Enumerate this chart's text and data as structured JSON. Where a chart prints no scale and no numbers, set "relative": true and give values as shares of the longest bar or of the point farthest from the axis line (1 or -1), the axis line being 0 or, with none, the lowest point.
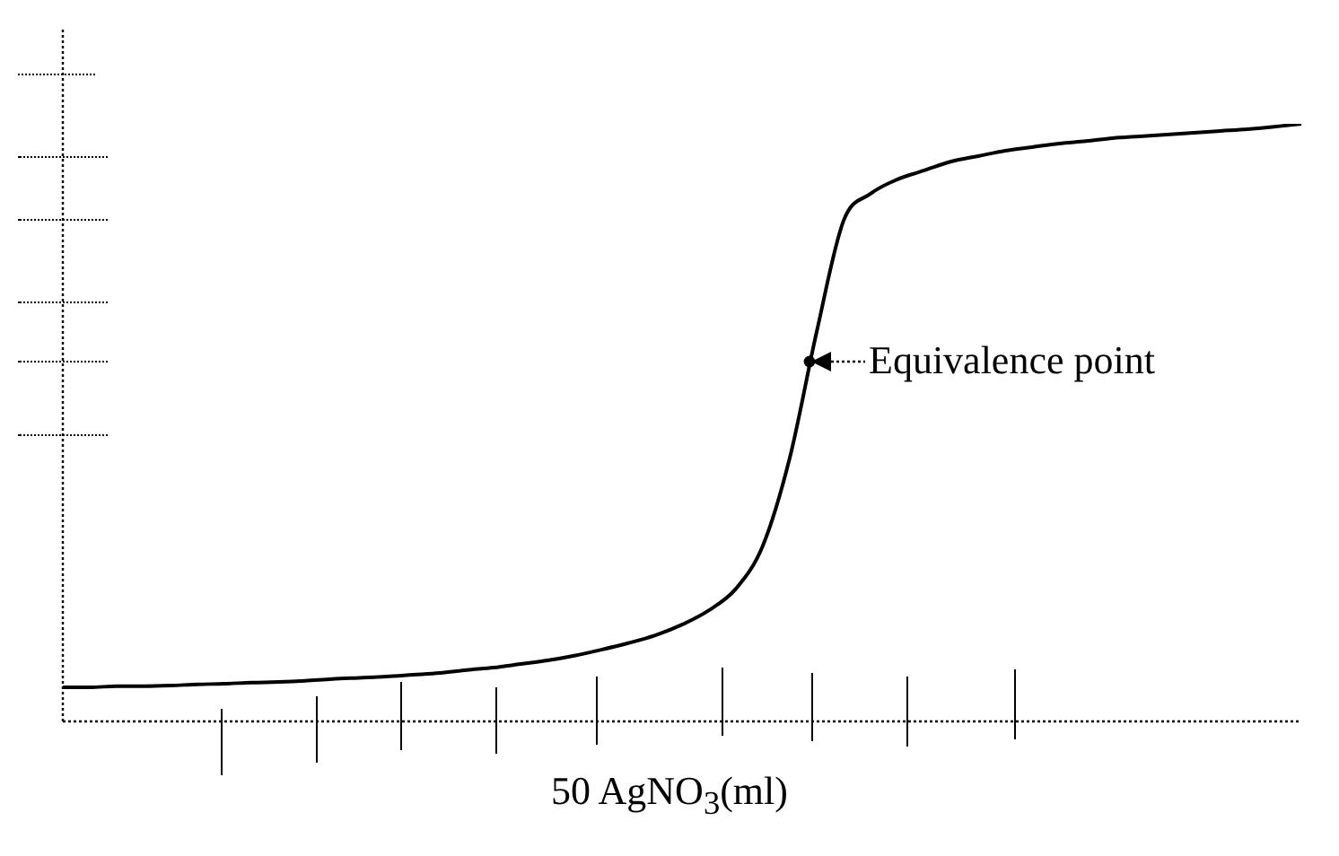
{
  "chart_data": {
    "type": "line",
    "relative": true,
    "xlabel": "50 AgNO$_{3}$(ml)",
    "marker": "none",
    "legend": false,
    "categories": [
      null,
      null,
      null,
      null,
      null,
      null,
      null,
      null,
      null,
      null,
      null,
      null,
      null,
      null,
      null,
      null,
      null,
      null,
      null,
      null,
      null,
      null,
      null,
      null,
      null,
      null,
      null,
      null,
      null,
      null,
      null,
      null,
      null,
      null,
      null,
      null,
      null,
      null,
      null,
      null,
      null,
      null,
      null,
      null,
      null,
      null,
      null
    ],
    "series": [
      {
        "color": "#000000",
        "values": [
          0.057,
          0.057,
          0.059,
          0.059,
          0.06,
          0.062,
          0.063,
          0.065,
          0.066,
          0.068,
          0.071,
          0.073,
          0.075,
          0.078,
          0.081,
          0.086,
          0.09,
          0.096,
          0.102,
          0.11,
          0.12,
          0.131,
          0.144,
          0.162,
          0.186,
          0.222,
          0.294,
          0.441,
          0.652,
          0.838,
          0.883,
          0.907,
          0.922,
          0.937,
          0.946,
          0.955,
          0.961,
          0.967,
          0.971,
          0.976,
          0.979,
          0.982,
          0.985,
          0.988,
          0.991,
          0.995,
          1
        ]
      }
    ],
    "annotations": [
      "Equivalence point"
    ]
  }
}
